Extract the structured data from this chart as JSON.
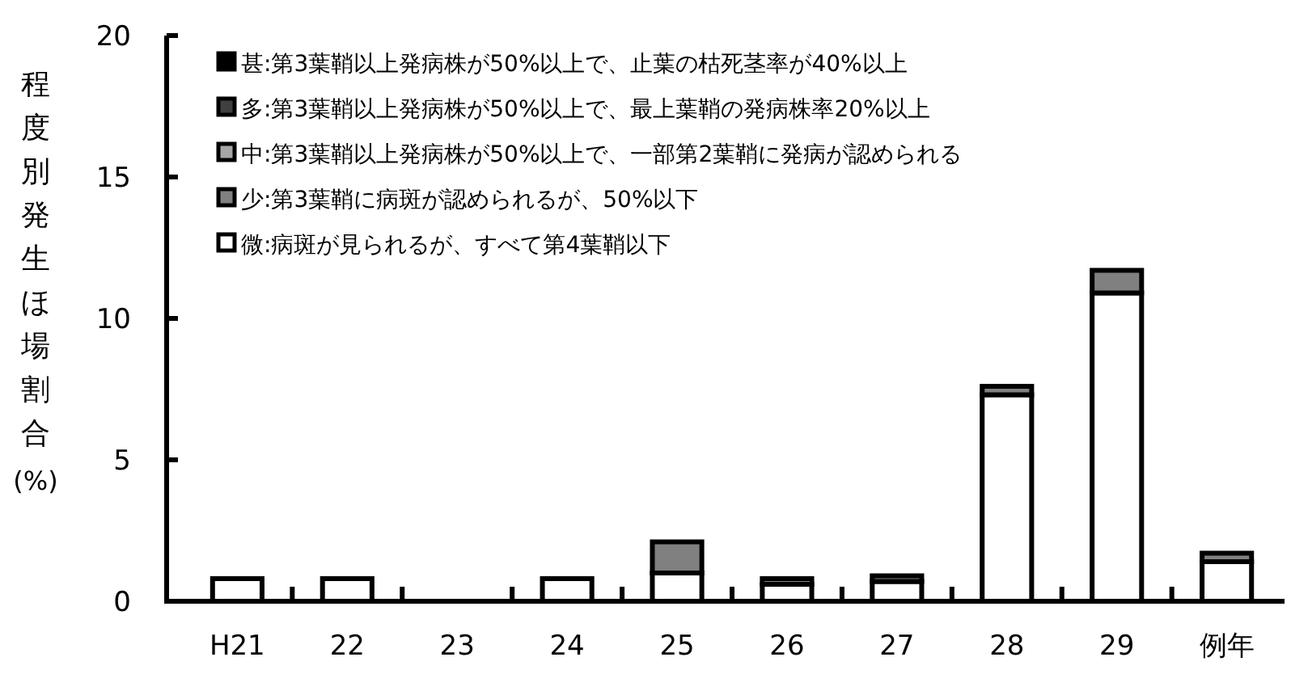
{
  "chart_data": {
    "type": "bar",
    "stacked": true,
    "ylabel": "程度別発生ほ場割合(%)",
    "categories": [
      "H21",
      "22",
      "23",
      "24",
      "25",
      "26",
      "27",
      "28",
      "29",
      "例年"
    ],
    "series": [
      {
        "name": "微:病斑が見られるが、すべて第4葉鞘以下",
        "color": "#ffffff",
        "values": [
          0.8,
          0.8,
          0,
          0.8,
          1.0,
          0.6,
          0.7,
          7.3,
          10.9,
          1.4
        ]
      },
      {
        "name": "少:第3葉鞘に病斑が認められるが、50%以下",
        "color": "#808080",
        "values": [
          0,
          0,
          0,
          0,
          1.1,
          0.2,
          0.2,
          0.3,
          0.8,
          0.3
        ]
      },
      {
        "name": "中:第3葉鞘以上発病株が50%以上で、一部第2葉鞘に発病が認められる",
        "color": "#a6a6a6",
        "values": [
          0,
          0,
          0,
          0,
          0,
          0,
          0,
          0,
          0,
          0
        ]
      },
      {
        "name": "多:第3葉鞘以上発病株が50%以上で、最上葉鞘の発病株率20%以上",
        "color": "#404040",
        "values": [
          0,
          0,
          0,
          0,
          0,
          0,
          0,
          0,
          0,
          0
        ]
      },
      {
        "name": "甚:第3葉鞘以上発病株が50%以上で、止葉の枯死茎率が40%以上",
        "color": "#000000",
        "values": [
          0,
          0,
          0,
          0,
          0,
          0,
          0,
          0,
          0,
          0
        ]
      }
    ],
    "ylim": [
      0,
      20
    ],
    "yticks": [
      0,
      5,
      10,
      15,
      20
    ],
    "legend": "top left",
    "grid": false
  }
}
